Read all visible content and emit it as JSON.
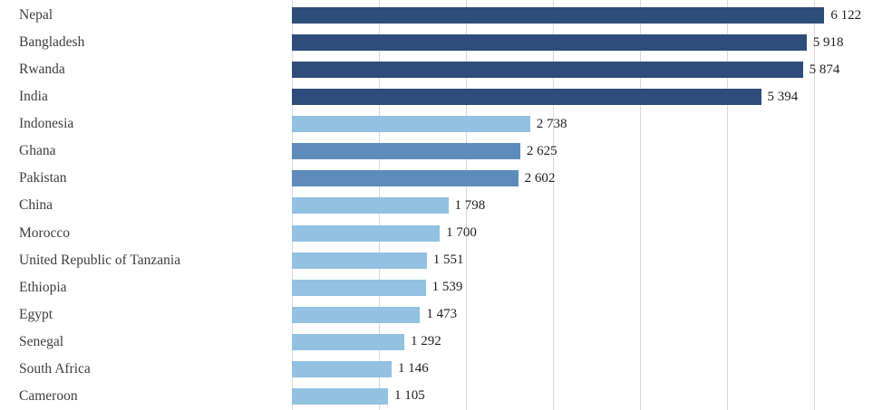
{
  "chart_data": {
    "type": "bar",
    "orientation": "horizontal",
    "title": "",
    "xlabel": "",
    "ylabel": "",
    "xlim": [
      0,
      6900
    ],
    "gridline_interval": 1000,
    "grid": true,
    "legend": "none",
    "categories": [
      "Nepal",
      "Bangladesh",
      "Rwanda",
      "India",
      "Indonesia",
      "Ghana",
      "Pakistan",
      "China",
      "Morocco",
      "United Republic of Tanzania",
      "Ethiopia",
      "Egypt",
      "Senegal",
      "South Africa",
      "Cameroon"
    ],
    "values": [
      6122,
      5918,
      5874,
      5394,
      2738,
      2625,
      2602,
      1798,
      1700,
      1551,
      1539,
      1473,
      1292,
      1146,
      1105
    ],
    "value_labels": [
      "6 122",
      "5 918",
      "5 874",
      "5 394",
      "2 738",
      "2 625",
      "2 602",
      "1 798",
      "1 700",
      "1 551",
      "1 539",
      "1 473",
      "1 292",
      "1 146",
      "1 105"
    ],
    "bar_color_keys": [
      "dark",
      "dark",
      "dark",
      "dark",
      "light",
      "medium",
      "medium",
      "light",
      "light",
      "light",
      "light",
      "light",
      "light",
      "light",
      "light"
    ],
    "colors": {
      "dark": "#2e4d7b",
      "medium": "#5d8cba",
      "light": "#92c1e1",
      "gridline": "#d9d9d9",
      "category_text": "#3d3d3d",
      "value_text": "#1f1f1f",
      "background": "#ffffff"
    }
  }
}
